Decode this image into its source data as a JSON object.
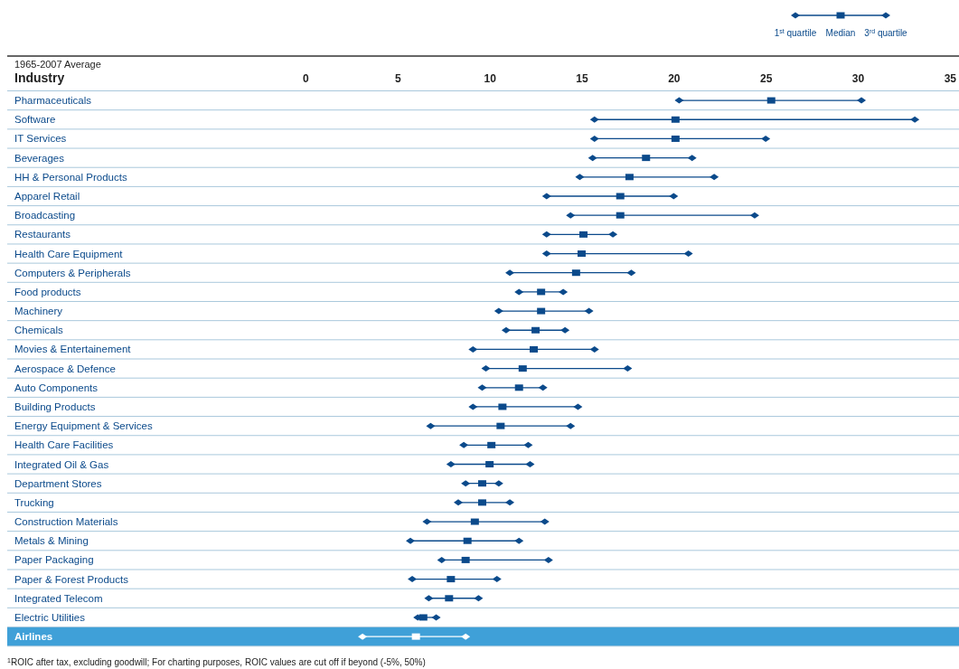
{
  "chart_data": {
    "type": "scatter",
    "orientation": "horizontal",
    "subtitle": "1965-2007 Average",
    "ylabel": "Industry",
    "categories": [
      "Pharmaceuticals",
      "Software",
      "IT Services",
      "Beverages",
      "HH & Personal Products",
      "Apparel Retail",
      "Broadcasting",
      "Restaurants",
      "Health Care Equipment",
      "Computers & Peripherals",
      "Food products",
      "Machinery",
      "Chemicals",
      "Movies & Entertainement",
      "Aerospace & Defence",
      "Auto Components",
      "Building Products",
      "Energy Equipment & Services",
      "Health Care Facilities",
      "Integrated Oil & Gas",
      "Department Stores",
      "Trucking",
      "Construction Materials",
      "Metals & Mining",
      "Paper Packaging",
      "Paper & Forest Products",
      "Integrated Telecom",
      "Electric Utilities",
      "Airlines"
    ],
    "x2lim": [
      -16.2,
      35.5
    ],
    "x2ticks": [
      0,
      5,
      10,
      15,
      20,
      25,
      30,
      35
    ],
    "grid": "y",
    "legend": "top right",
    "series": [
      {
        "name": "1$^{st}$ quartile",
        "axis": "x2",
        "color": "#0b4a8b",
        "colors": [
          "#0b4a8b",
          "#0b4a8b",
          "#0b4a8b",
          "#0b4a8b",
          "#0b4a8b",
          "#0b4a8b",
          "#0b4a8b",
          "#0b4a8b",
          "#0b4a8b",
          "#0b4a8b",
          "#0b4a8b",
          "#0b4a8b",
          "#0b4a8b",
          "#0b4a8b",
          "#0b4a8b",
          "#0b4a8b",
          "#0b4a8b",
          "#0b4a8b",
          "#0b4a8b",
          "#0b4a8b",
          "#0b4a8b",
          "#0b4a8b",
          "#0b4a8b",
          "#0b4a8b",
          "#0b4a8b",
          "#0b4a8b",
          "#0b4a8b",
          "#0b4a8b",
          "#ffffff"
        ],
        "marker": "diamond",
        "values": [
          20.3,
          15.7,
          15.7,
          15.6,
          14.9,
          13.1,
          14.4,
          13.1,
          13.1,
          11.1,
          11.6,
          10.5,
          10.9,
          9.1,
          9.8,
          9.6,
          9.1,
          6.8,
          8.6,
          7.9,
          8.7,
          8.3,
          6.6,
          5.7,
          7.4,
          5.8,
          6.7,
          6.1,
          3.1
        ]
      },
      {
        "name": "Median",
        "axis": "x2",
        "color": "#0b4a8b",
        "colors": [
          "#0b4a8b",
          "#0b4a8b",
          "#0b4a8b",
          "#0b4a8b",
          "#0b4a8b",
          "#0b4a8b",
          "#0b4a8b",
          "#0b4a8b",
          "#0b4a8b",
          "#0b4a8b",
          "#0b4a8b",
          "#0b4a8b",
          "#0b4a8b",
          "#0b4a8b",
          "#0b4a8b",
          "#0b4a8b",
          "#0b4a8b",
          "#0b4a8b",
          "#0b4a8b",
          "#0b4a8b",
          "#0b4a8b",
          "#0b4a8b",
          "#0b4a8b",
          "#0b4a8b",
          "#0b4a8b",
          "#0b4a8b",
          "#0b4a8b",
          "#0b4a8b",
          "#ffffff"
        ],
        "marker": "square",
        "values": [
          25.3,
          20.1,
          20.1,
          18.5,
          17.6,
          17.1,
          17.1,
          15.1,
          15.0,
          14.7,
          12.8,
          12.8,
          12.5,
          12.4,
          11.8,
          11.6,
          10.7,
          10.6,
          10.1,
          10.0,
          9.6,
          9.6,
          9.2,
          8.8,
          8.7,
          7.9,
          7.8,
          6.4,
          6.0
        ]
      },
      {
        "name": "3$^{rd}$ quartile",
        "axis": "x2",
        "color": "#0b4a8b",
        "colors": [
          "#0b4a8b",
          "#0b4a8b",
          "#0b4a8b",
          "#0b4a8b",
          "#0b4a8b",
          "#0b4a8b",
          "#0b4a8b",
          "#0b4a8b",
          "#0b4a8b",
          "#0b4a8b",
          "#0b4a8b",
          "#0b4a8b",
          "#0b4a8b",
          "#0b4a8b",
          "#0b4a8b",
          "#0b4a8b",
          "#0b4a8b",
          "#0b4a8b",
          "#0b4a8b",
          "#0b4a8b",
          "#0b4a8b",
          "#0b4a8b",
          "#0b4a8b",
          "#0b4a8b",
          "#0b4a8b",
          "#0b4a8b",
          "#0b4a8b",
          "#0b4a8b",
          "#ffffff"
        ],
        "marker": "diamond",
        "values": [
          30.2,
          33.1,
          25.0,
          21.0,
          22.2,
          20.0,
          24.4,
          16.7,
          20.8,
          17.7,
          14.0,
          15.4,
          14.1,
          15.7,
          17.5,
          12.9,
          14.8,
          14.4,
          12.1,
          12.2,
          10.5,
          11.1,
          13.0,
          11.6,
          13.2,
          10.4,
          9.4,
          7.1,
          8.7
        ]
      }
    ],
    "bands": [
      {
        "axis": "y",
        "from": "Airlines",
        "to": "Airlines",
        "color": "#3fa0d8"
      }
    ],
    "annotations": [
      "$^{1}$ROIC after tax, excluding goodwill; For charting purposes, ROIC values are cut off if beyond (-5%, 50%)"
    ]
  }
}
